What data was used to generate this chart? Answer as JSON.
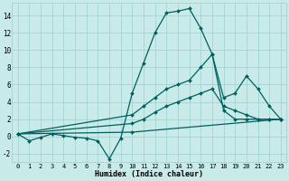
{
  "xlabel": "Humidex (Indice chaleur)",
  "bg_color": "#c8eae8",
  "grid_color": "#9ecece",
  "line_color": "#006060",
  "xlim": [
    -0.5,
    23.5
  ],
  "ylim": [
    -3.0,
    15.5
  ],
  "xticks": [
    0,
    1,
    2,
    3,
    4,
    5,
    6,
    7,
    8,
    9,
    10,
    11,
    12,
    13,
    14,
    15,
    16,
    17,
    18,
    19,
    20,
    21,
    22,
    23
  ],
  "yticks": [
    -2,
    0,
    2,
    4,
    6,
    8,
    10,
    12,
    14
  ],
  "lines": [
    {
      "x": [
        0,
        1,
        2,
        3,
        4,
        5,
        6,
        7,
        8,
        9,
        10,
        11,
        12,
        13,
        14,
        15,
        16,
        17,
        18,
        19,
        20,
        21,
        22,
        23
      ],
      "y": [
        0.3,
        -0.5,
        -0.1,
        0.3,
        0.1,
        -0.1,
        -0.2,
        -0.5,
        -2.6,
        -0.2,
        5.0,
        8.5,
        12.0,
        14.3,
        14.5,
        14.8,
        12.5,
        9.5,
        3.0,
        2.0,
        2.0,
        2.0,
        2.0,
        2.0
      ]
    },
    {
      "x": [
        0,
        10,
        11,
        12,
        13,
        14,
        15,
        16,
        17,
        18,
        19,
        20,
        21,
        22,
        23
      ],
      "y": [
        0.3,
        2.5,
        3.5,
        4.5,
        5.5,
        6.0,
        6.5,
        8.0,
        9.5,
        4.5,
        5.0,
        7.0,
        5.5,
        3.5,
        2.0
      ]
    },
    {
      "x": [
        0,
        10,
        11,
        12,
        13,
        14,
        15,
        16,
        17,
        18,
        19,
        20,
        21,
        22,
        23
      ],
      "y": [
        0.3,
        1.5,
        2.0,
        2.8,
        3.5,
        4.0,
        4.5,
        5.0,
        5.5,
        3.5,
        3.0,
        2.5,
        2.0,
        2.0,
        2.0
      ]
    },
    {
      "x": [
        0,
        10,
        23
      ],
      "y": [
        0.3,
        0.5,
        2.0
      ]
    }
  ]
}
